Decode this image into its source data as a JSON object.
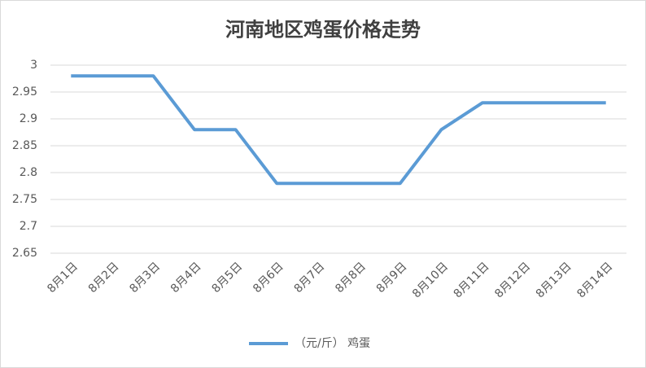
{
  "chart_data": {
    "type": "line",
    "title": "河南地区鸡蛋价格走势",
    "categories": [
      "8月1日",
      "8月2日",
      "8月3日",
      "8月4日",
      "8月5日",
      "8月6日",
      "8月7日",
      "8月8日",
      "8月9日",
      "8月10日",
      "8月11日",
      "8月12日",
      "8月13日",
      "8月14日"
    ],
    "series": [
      {
        "name": "（元/斤） 鸡蛋",
        "color": "#5b9bd5",
        "values": [
          2.98,
          2.98,
          2.98,
          2.88,
          2.88,
          2.78,
          2.78,
          2.78,
          2.78,
          2.88,
          2.93,
          2.93,
          2.93,
          2.93
        ]
      }
    ],
    "ylim": [
      2.65,
      3
    ],
    "yticks": [
      2.65,
      2.7,
      2.75,
      2.8,
      2.85,
      2.9,
      2.95,
      3
    ],
    "grid": true,
    "legend": "bottom"
  }
}
